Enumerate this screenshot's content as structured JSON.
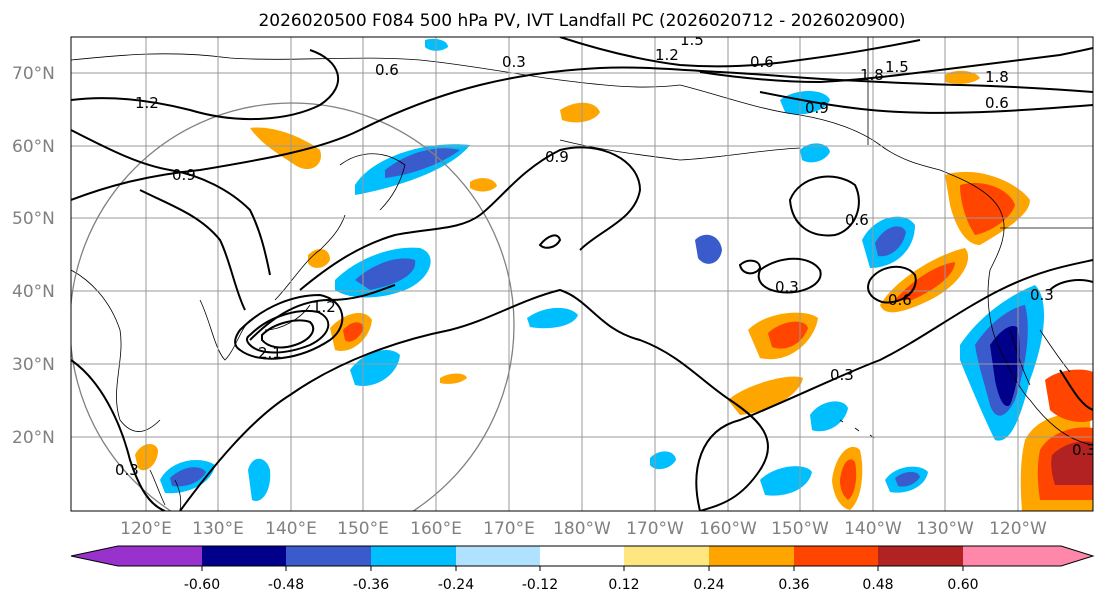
{
  "title": "2026020500 F084 500 hPa PV, IVT Landfall PC (2026020712 - 2026020900)",
  "map": {
    "lat_labels": [
      "70°N",
      "60°N",
      "50°N",
      "40°N",
      "30°N",
      "20°N"
    ],
    "lon_labels": [
      "120°E",
      "130°E",
      "140°E",
      "150°E",
      "160°E",
      "170°E",
      "180°W",
      "170°W",
      "160°W",
      "150°W",
      "140°W",
      "130°W",
      "120°W"
    ],
    "contour_labels": [
      "0.3",
      "0.6",
      "0.9",
      "1.2",
      "1.5",
      "1.8",
      "2.1"
    ]
  },
  "colorbar": {
    "tick_labels": [
      "-0.60",
      "-0.48",
      "-0.36",
      "-0.24",
      "-0.12",
      "0.12",
      "0.24",
      "0.36",
      "0.48",
      "0.60"
    ],
    "colors": [
      "#9932cc",
      "#00008b",
      "#3a5bcc",
      "#00bfff",
      "#b0e2ff",
      "#ffffff",
      "#ffe680",
      "#ffa500",
      "#ff4500",
      "#b22222",
      "#ff88aa"
    ]
  }
}
